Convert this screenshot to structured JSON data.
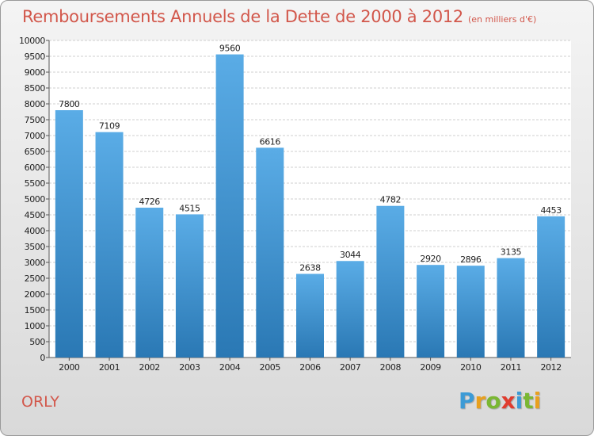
{
  "header": {
    "title": "Remboursements Annuels de la Dette de 2000 à 2012",
    "subtitle": "(en milliers d'€)"
  },
  "footer": {
    "city": "ORLY",
    "logo": {
      "letters": [
        "P",
        "r",
        "o",
        "x",
        "i",
        "t",
        "i"
      ],
      "colors": [
        "#3c9bd6",
        "#e8a01e",
        "#7ab733",
        "#e03c2e",
        "#3c9bd6",
        "#7ab733",
        "#e8a01e"
      ]
    }
  },
  "chart_data": {
    "type": "bar",
    "title": "Remboursements Annuels de la Dette de 2000 à 2012",
    "subtitle": "(en milliers d'€)",
    "categories": [
      "2000",
      "2001",
      "2002",
      "2003",
      "2004",
      "2005",
      "2006",
      "2007",
      "2008",
      "2009",
      "2010",
      "2011",
      "2012"
    ],
    "values": [
      7800,
      7109,
      4726,
      4515,
      9560,
      6616,
      2638,
      3044,
      4782,
      2920,
      2896,
      3135,
      4453
    ],
    "ylim": [
      0,
      10000
    ],
    "ytick_step": 500,
    "grid": true,
    "legend": "none",
    "bar_color_light": "#5aace6",
    "bar_color_dark": "#2a78b4"
  }
}
